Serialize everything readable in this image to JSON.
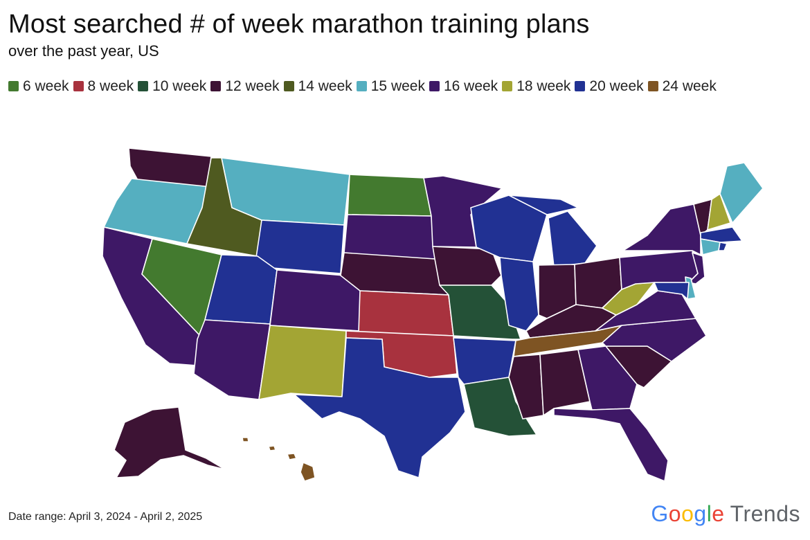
{
  "header": {
    "title": "Most searched # of week marathon training plans",
    "subtitle": "over the past year, US"
  },
  "legend": [
    {
      "label": "6 week",
      "color": "#437A2F"
    },
    {
      "label": "8 week",
      "color": "#A8323E"
    },
    {
      "label": "10 week",
      "color": "#245137"
    },
    {
      "label": "12 week",
      "color": "#3D1334"
    },
    {
      "label": "14 week",
      "color": "#4F5A20"
    },
    {
      "label": "15 week",
      "color": "#55AFC0"
    },
    {
      "label": "16 week",
      "color": "#3E1866"
    },
    {
      "label": "18 week",
      "color": "#A3A534"
    },
    {
      "label": "20 week",
      "color": "#213193"
    },
    {
      "label": "24 week",
      "color": "#7E5423"
    }
  ],
  "states": {
    "WA": "12 week",
    "OR": "15 week",
    "CA": "16 week",
    "NV": "6 week",
    "ID": "14 week",
    "MT": "15 week",
    "WY": "20 week",
    "UT": "20 week",
    "AZ": "16 week",
    "CO": "16 week",
    "NM": "18 week",
    "ND": "6 week",
    "SD": "16 week",
    "NE": "12 week",
    "KS": "8 week",
    "OK": "8 week",
    "TX": "20 week",
    "MN": "16 week",
    "IA": "12 week",
    "MO": "10 week",
    "AR": "20 week",
    "LA": "10 week",
    "WI": "20 week",
    "IL": "20 week",
    "MI": "20 week",
    "IN": "12 week",
    "OH": "12 week",
    "KY": "12 week",
    "TN": "24 week",
    "MS": "12 week",
    "AL": "12 week",
    "GA": "16 week",
    "FL": "16 week",
    "SC": "12 week",
    "NC": "16 week",
    "VA": "16 week",
    "WV": "18 week",
    "PA": "16 week",
    "NY": "16 week",
    "VT": "12 week",
    "NH": "18 week",
    "ME": "15 week",
    "MA": "20 week",
    "CT": "15 week",
    "RI": "20 week",
    "NJ": "16 week",
    "DE": "15 week",
    "MD": "20 week",
    "AK": "12 week",
    "HI": "24 week"
  },
  "footer": {
    "date_range": "Date range: April 3, 2024 - April 2, 2025"
  },
  "brand": {
    "g": [
      "G",
      "o",
      "o",
      "g",
      "l",
      "e"
    ],
    "trends": "Trends"
  }
}
